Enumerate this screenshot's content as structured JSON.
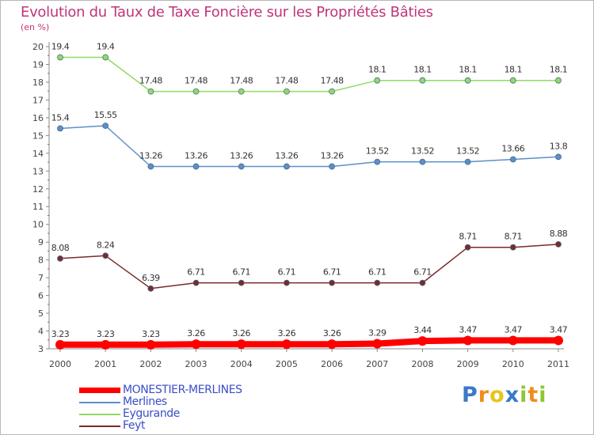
{
  "title": "Evolution du Taux de Taxe Foncière sur les Propriétés Bâties",
  "unit": "(en %)",
  "brand": {
    "letters": [
      {
        "char": "P",
        "color": "#3a78c8"
      },
      {
        "char": "r",
        "color": "#f08c1e"
      },
      {
        "char": "o",
        "color": "#e8c41e"
      },
      {
        "char": "x",
        "color": "#3a78c8"
      },
      {
        "char": "i",
        "color": "#8cc832"
      },
      {
        "char": "t",
        "color": "#f08c1e"
      },
      {
        "char": "i",
        "color": "#8cc832"
      }
    ]
  },
  "chart_data": {
    "type": "line",
    "title": "Evolution du Taux de Taxe Foncière sur les Propriétés Bâties",
    "ylabel": "(en %)",
    "xlabel": "",
    "x": [
      "2000",
      "2001",
      "2002",
      "2003",
      "2004",
      "2005",
      "2006",
      "2007",
      "2008",
      "2009",
      "2010",
      "2011"
    ],
    "ylim": [
      3,
      20
    ],
    "yticks": [
      3,
      4,
      5,
      6,
      7,
      8,
      9,
      10,
      11,
      12,
      13,
      14,
      15,
      16,
      17,
      18,
      19,
      20
    ],
    "grid": false,
    "legend_position": "bottom-left",
    "series": [
      {
        "name": "MONESTIER-MERLINES",
        "color": "#ff0000",
        "width": 8,
        "marker_r": 6,
        "values": [
          3.23,
          3.23,
          3.23,
          3.26,
          3.26,
          3.26,
          3.26,
          3.29,
          3.44,
          3.47,
          3.47,
          3.47
        ],
        "labels": [
          "3.23",
          "3.23",
          "3.23",
          "3.26",
          "3.26",
          "3.26",
          "3.26",
          "3.29",
          "3.44",
          "3.47",
          "3.47",
          "3.47"
        ]
      },
      {
        "name": "Merlines",
        "color": "#5b8fc9",
        "width": 1.5,
        "marker_r": 3.5,
        "values": [
          15.4,
          15.55,
          13.26,
          13.26,
          13.26,
          13.26,
          13.26,
          13.52,
          13.52,
          13.52,
          13.66,
          13.8
        ],
        "labels": [
          "15.4",
          "15.55",
          "13.26",
          "13.26",
          "13.26",
          "13.26",
          "13.26",
          "13.52",
          "13.52",
          "13.52",
          "13.66",
          "13.8"
        ]
      },
      {
        "name": "Eygurande",
        "color": "#8fdc64",
        "width": 1.5,
        "marker_r": 3.5,
        "values": [
          19.4,
          19.4,
          17.48,
          17.48,
          17.48,
          17.48,
          17.48,
          18.1,
          18.1,
          18.1,
          18.1,
          18.1
        ],
        "labels": [
          "19.4",
          "19.4",
          "17.48",
          "17.48",
          "17.48",
          "17.48",
          "17.48",
          "18.1",
          "18.1",
          "18.1",
          "18.1",
          "18.1"
        ]
      },
      {
        "name": "Feyt",
        "color": "#7a2a2a",
        "width": 1.5,
        "marker_r": 3.5,
        "values": [
          8.08,
          8.24,
          6.39,
          6.71,
          6.71,
          6.71,
          6.71,
          6.71,
          6.71,
          8.71,
          8.71,
          8.88
        ],
        "labels": [
          "8.08",
          "8.24",
          "6.39",
          "6.71",
          "6.71",
          "6.71",
          "6.71",
          "6.71",
          "6.71",
          "8.71",
          "8.71",
          "8.88"
        ]
      }
    ]
  }
}
